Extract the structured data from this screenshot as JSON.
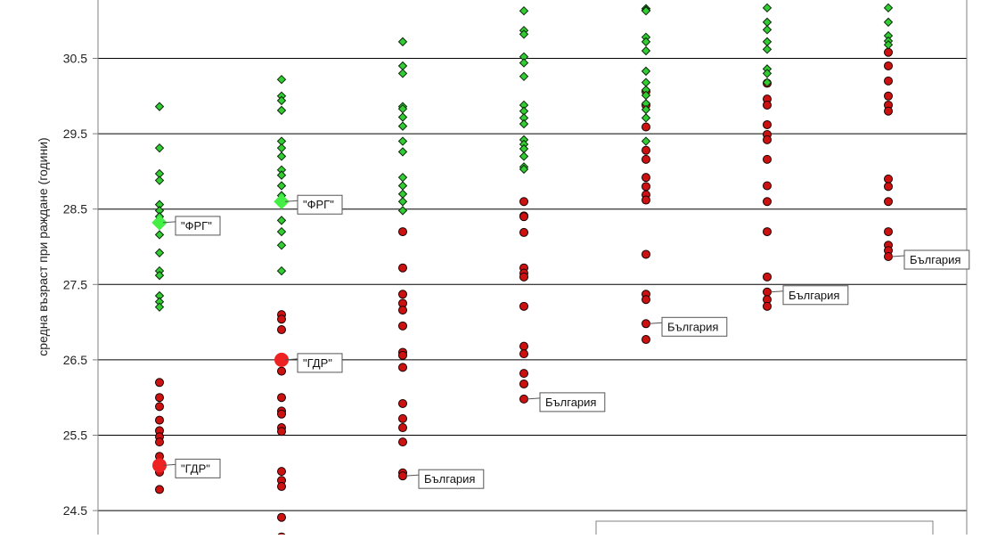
{
  "chart_data": {
    "type": "scatter",
    "ylabel": "средна възраст при раждане (години)",
    "ylim": [
      24.0,
      31.2
    ],
    "yticks": [
      "24.5",
      "25.5",
      "26.5",
      "27.5",
      "28.5",
      "29.5",
      "30.5"
    ],
    "grid": true,
    "colors": {
      "green": "#33cc33",
      "red": "#cc1111",
      "grid": "#000000",
      "axis": "#808080"
    },
    "groups": [
      {
        "green": [
          29.86,
          29.31,
          28.97,
          28.88,
          28.56,
          28.48,
          28.4,
          28.16,
          27.92,
          27.68,
          27.62,
          27.35,
          27.27,
          27.2
        ],
        "red": [
          26.2,
          26.0,
          25.88,
          25.7,
          25.56,
          25.48,
          25.41,
          25.22,
          25.1,
          25.01,
          24.78
        ]
      },
      {
        "green": [
          30.22,
          30.0,
          29.94,
          29.81,
          29.4,
          29.31,
          29.2,
          29.02,
          28.95,
          28.81,
          28.68,
          28.35,
          28.2,
          28.02,
          27.68
        ],
        "red": [
          27.1,
          27.04,
          26.9,
          26.35,
          26.0,
          25.82,
          25.78,
          25.6,
          25.55,
          25.02,
          24.9,
          24.82,
          24.41,
          24.15
        ]
      },
      {
        "green": [
          30.72,
          30.4,
          30.3,
          29.86,
          29.83,
          29.72,
          29.6,
          29.4,
          29.26,
          28.92,
          28.81,
          28.7,
          28.6,
          28.48
        ],
        "red": [
          28.2,
          27.72,
          27.37,
          27.25,
          27.16,
          26.95,
          26.6,
          26.56,
          26.4,
          25.92,
          25.72,
          25.6,
          25.41,
          25.0,
          24.96
        ]
      },
      {
        "green": [
          31.13,
          30.87,
          30.82,
          30.52,
          30.44,
          30.26,
          29.88,
          29.8,
          29.71,
          29.63,
          29.42,
          29.36,
          29.3,
          29.2,
          29.06,
          29.03
        ],
        "red": [
          28.6,
          28.41,
          28.4,
          28.19,
          27.72,
          27.65,
          27.6,
          27.21,
          26.68,
          26.58,
          26.32,
          26.18,
          25.98
        ]
      },
      {
        "green": [
          31.16,
          31.14,
          31.13,
          30.78,
          30.72,
          30.6,
          30.33,
          30.18,
          30.08,
          30.01,
          29.9,
          29.82,
          29.71,
          29.4
        ],
        "red": [
          30.06,
          29.88,
          29.59,
          29.28,
          29.16,
          28.92,
          28.8,
          28.69,
          28.62,
          27.9,
          27.37,
          27.3,
          26.98,
          26.77
        ]
      },
      {
        "green": [
          31.17,
          30.98,
          30.88,
          30.72,
          30.62,
          30.36,
          30.3,
          30.18
        ],
        "red": [
          30.17,
          29.96,
          29.88,
          29.62,
          29.49,
          29.42,
          29.16,
          28.81,
          28.6,
          28.2,
          27.6,
          27.4,
          27.3,
          27.21
        ]
      },
      {
        "green": [
          31.17,
          30.98,
          30.8,
          30.73,
          30.68
        ],
        "red": [
          30.58,
          30.4,
          30.2,
          30.0,
          29.88,
          29.8,
          28.9,
          28.8,
          28.6,
          28.2,
          28.02,
          27.95,
          27.87
        ]
      }
    ],
    "highlights": [
      {
        "group": 0,
        "color": "green",
        "y": 28.32
      },
      {
        "group": 0,
        "color": "red",
        "y": 25.1
      },
      {
        "group": 1,
        "color": "green",
        "y": 28.6
      },
      {
        "group": 1,
        "color": "red",
        "y": 26.5
      }
    ],
    "annotations": [
      {
        "group": 0,
        "y": 28.32,
        "text": "\"ФРГ\""
      },
      {
        "group": 0,
        "y": 25.1,
        "text": "\"ГДР\""
      },
      {
        "group": 1,
        "y": 28.6,
        "text": "\"ФРГ\""
      },
      {
        "group": 1,
        "y": 26.5,
        "text": "\"ГДР\""
      },
      {
        "group": 2,
        "y": 24.96,
        "text": "България"
      },
      {
        "group": 3,
        "y": 25.98,
        "text": "България"
      },
      {
        "group": 4,
        "y": 26.98,
        "text": "България"
      },
      {
        "group": 5,
        "y": 27.4,
        "text": "България"
      },
      {
        "group": 6,
        "y": 27.87,
        "text": "България"
      }
    ]
  }
}
